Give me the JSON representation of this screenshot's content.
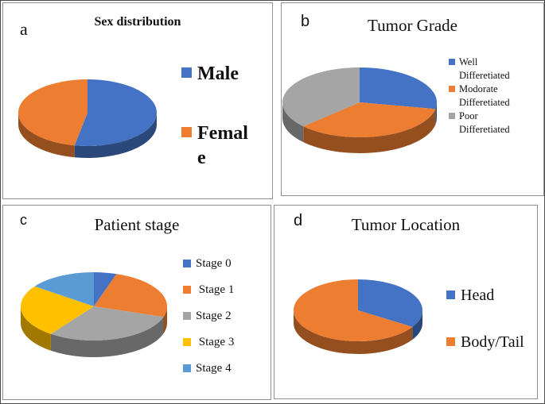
{
  "panel_letters": [
    "a",
    "b",
    "c",
    "d"
  ],
  "palette": {
    "blue": "#4472C4",
    "orange": "#ED7D31",
    "gray": "#A5A5A5",
    "yellow": "#FFC000",
    "light_blue": "#5B9BD5"
  },
  "chart_data": [
    {
      "type": "pie",
      "panel": "a",
      "title": "Sex distribution",
      "labels": [
        "Male",
        "Female"
      ],
      "values": [
        53,
        47
      ],
      "values_note": "percent, estimated from slice angles",
      "colors": [
        "#4472C4",
        "#ED7D31"
      ],
      "legend_position": "right",
      "legend_display_lines": [
        [
          "Male"
        ],
        [
          "Femal",
          "e"
        ]
      ],
      "start_angle_deg": 0,
      "direction": "clockwise",
      "style": "3d"
    },
    {
      "type": "pie",
      "panel": "b",
      "title": "Tumor Grade",
      "labels": [
        "Well Differetiated",
        "Modorate Differetiated",
        "Poor Differetiated"
      ],
      "values": [
        28,
        35,
        37
      ],
      "values_note": "percent, estimated from slice angles",
      "colors": [
        "#4472C4",
        "#ED7D31",
        "#A5A5A5"
      ],
      "legend_position": "right",
      "legend_display_lines": [
        [
          "Well",
          "Differetiated"
        ],
        [
          "Modorate",
          "Differetiated"
        ],
        [
          "Poor",
          "Differetiated"
        ]
      ],
      "start_angle_deg": 0,
      "direction": "clockwise",
      "style": "3d"
    },
    {
      "type": "pie",
      "panel": "c",
      "title": "Patient stage",
      "labels": [
        "Stage 0",
        "Stage 1",
        "Stage 2",
        "Stage 3",
        "Stage 4"
      ],
      "values": [
        5,
        25,
        30,
        25,
        15
      ],
      "values_note": "percent, estimated from slice angles",
      "colors": [
        "#4472C4",
        "#ED7D31",
        "#A5A5A5",
        "#FFC000",
        "#5B9BD5"
      ],
      "legend_position": "right",
      "legend_display_lines": [
        [
          "Stage 0"
        ],
        [
          " Stage 1"
        ],
        [
          "Stage 2"
        ],
        [
          " Stage 3"
        ],
        [
          "Stage 4"
        ]
      ],
      "start_angle_deg": 0,
      "direction": "clockwise",
      "style": "3d"
    },
    {
      "type": "pie",
      "panel": "d",
      "title": "Tumor Location",
      "labels": [
        "Head",
        "Body/Tail"
      ],
      "values": [
        34,
        66
      ],
      "values_note": "percent, estimated from slice angles",
      "colors": [
        "#4472C4",
        "#ED7D31"
      ],
      "legend_position": "right",
      "legend_display_lines": [
        [
          "Head"
        ],
        [
          "Body/Tail"
        ]
      ],
      "start_angle_deg": 0,
      "direction": "clockwise",
      "style": "3d"
    }
  ]
}
